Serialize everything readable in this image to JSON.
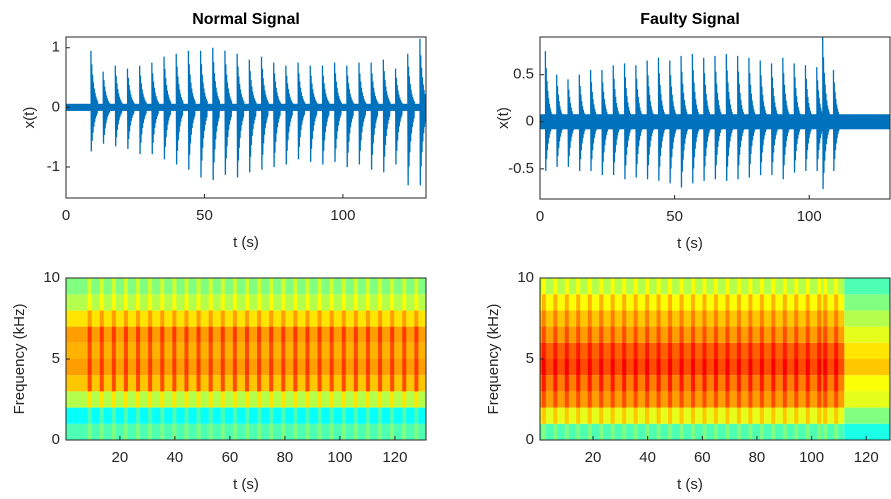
{
  "chart_data": [
    {
      "type": "bursts",
      "title": "Normal Signal",
      "xlabel": "t (s)",
      "ylabel": "x(t)",
      "color": "#0072bd",
      "xlim": [
        0,
        130
      ],
      "xticks": [
        0,
        50,
        100
      ],
      "ylim": [
        -1.52,
        1.18
      ],
      "yticks": [
        -1,
        0,
        1
      ],
      "baseline_noise": 0.06,
      "x": [
        9,
        13.4,
        17.8,
        22.2,
        26.6,
        31,
        35.4,
        39.8,
        44.2,
        48.6,
        53,
        57.4,
        61.8,
        66.2,
        70.6,
        75,
        79.4,
        83.8,
        88.2,
        92.6,
        97,
        101.4,
        105.8,
        110.2,
        114.6,
        119,
        123.4,
        127.8
      ],
      "highs": [
        0.95,
        0.6,
        0.7,
        0.65,
        0.7,
        0.75,
        0.85,
        0.9,
        0.95,
        0.95,
        1.0,
        0.95,
        0.9,
        0.8,
        0.85,
        0.75,
        0.7,
        0.75,
        0.7,
        0.7,
        0.75,
        0.7,
        0.75,
        0.75,
        0.8,
        0.65,
        0.9,
        1.15
      ],
      "lows": [
        -0.85,
        -0.7,
        -0.75,
        -0.8,
        -0.9,
        -0.9,
        -1.0,
        -1.1,
        -1.2,
        -1.35,
        -1.4,
        -1.3,
        -1.35,
        -1.25,
        -1.2,
        -1.15,
        -1.1,
        -1.0,
        -1.05,
        -1.1,
        -1.05,
        -1.15,
        -1.1,
        -1.2,
        -1.25,
        -1.1,
        -1.5,
        -1.5
      ]
    },
    {
      "type": "bursts",
      "title": "Faulty Signal",
      "xlabel": "t (s)",
      "ylabel": "x(t)",
      "color": "#0072bd",
      "xlim": [
        0,
        130
      ],
      "xticks": [
        0,
        50,
        100
      ],
      "ylim": [
        -0.82,
        0.9
      ],
      "yticks": [
        -0.5,
        0,
        0.5
      ],
      "baseline_noise": 0.08,
      "x": [
        2,
        6.2,
        10.4,
        14.6,
        18.8,
        23,
        27.2,
        31.4,
        35.6,
        39.8,
        44,
        48.2,
        52.4,
        56.6,
        60.8,
        65,
        69.2,
        73.4,
        77.6,
        81.8,
        86,
        90.2,
        94.4,
        98.6,
        102.8,
        105,
        109
      ],
      "highs": [
        0.75,
        0.5,
        0.45,
        0.5,
        0.55,
        0.55,
        0.6,
        0.62,
        0.6,
        0.65,
        0.68,
        0.65,
        0.7,
        0.72,
        0.68,
        0.7,
        0.72,
        0.7,
        0.68,
        0.65,
        0.62,
        0.68,
        0.62,
        0.6,
        0.58,
        0.9,
        0.55
      ],
      "lows": [
        -0.6,
        -0.55,
        -0.55,
        -0.6,
        -0.6,
        -0.65,
        -0.65,
        -0.7,
        -0.68,
        -0.7,
        -0.72,
        -0.75,
        -0.8,
        -0.75,
        -0.72,
        -0.7,
        -0.72,
        -0.7,
        -0.68,
        -0.65,
        -0.65,
        -0.7,
        -0.62,
        -0.6,
        -0.6,
        -0.82,
        -0.6
      ]
    },
    {
      "type": "spectrogram",
      "xlabel": "t (s)",
      "ylabel": "Frequency (kHz)",
      "xlim": [
        0.4,
        131.3
      ],
      "xticks": [
        20,
        40,
        60,
        80,
        100,
        120
      ],
      "ylim": [
        0,
        10
      ],
      "yticks": [
        0,
        5,
        10
      ],
      "freq_bins": [
        0,
        1,
        2,
        3,
        4,
        5,
        6,
        7,
        8,
        9,
        10
      ],
      "background": [
        0.45,
        0.38,
        0.55,
        0.68,
        0.72,
        0.7,
        0.72,
        0.65,
        0.55,
        0.5
      ],
      "burst": [
        0.5,
        0.45,
        0.65,
        0.8,
        0.82,
        0.8,
        0.82,
        0.72,
        0.62,
        0.58
      ],
      "x": [
        9,
        13.4,
        17.8,
        22.2,
        26.6,
        31,
        35.4,
        39.8,
        44.2,
        48.6,
        53,
        57.4,
        61.8,
        66.2,
        70.6,
        75,
        79.4,
        83.8,
        88.2,
        92.6,
        97,
        101.4,
        105.8,
        110.2,
        114.6,
        119,
        123.4,
        127.8
      ]
    },
    {
      "type": "spectrogram",
      "xlabel": "t (s)",
      "ylabel": "Frequency (kHz)",
      "xlim": [
        0.6,
        128.7
      ],
      "xticks": [
        20,
        40,
        60,
        80,
        100,
        120
      ],
      "ylim": [
        0,
        10
      ],
      "yticks": [
        0,
        5,
        10
      ],
      "freq_bins": [
        0,
        1,
        2,
        3,
        4,
        5,
        6,
        7,
        8,
        9,
        10
      ],
      "background": [
        0.45,
        0.6,
        0.72,
        0.75,
        0.8,
        0.78,
        0.72,
        0.68,
        0.62,
        0.55
      ],
      "burst": [
        0.5,
        0.68,
        0.8,
        0.85,
        0.88,
        0.85,
        0.8,
        0.75,
        0.7,
        0.62
      ],
      "quiet_from": 112,
      "quiet": [
        0.4,
        0.5,
        0.6,
        0.62,
        0.68,
        0.65,
        0.6,
        0.55,
        0.5,
        0.45
      ],
      "x": [
        2,
        6.2,
        10.4,
        14.6,
        18.8,
        23,
        27.2,
        31.4,
        35.6,
        39.8,
        44,
        48.2,
        52.4,
        56.6,
        60.8,
        65,
        69.2,
        73.4,
        77.6,
        81.8,
        86,
        90.2,
        94.4,
        98.6,
        102.8,
        105,
        109
      ]
    }
  ]
}
